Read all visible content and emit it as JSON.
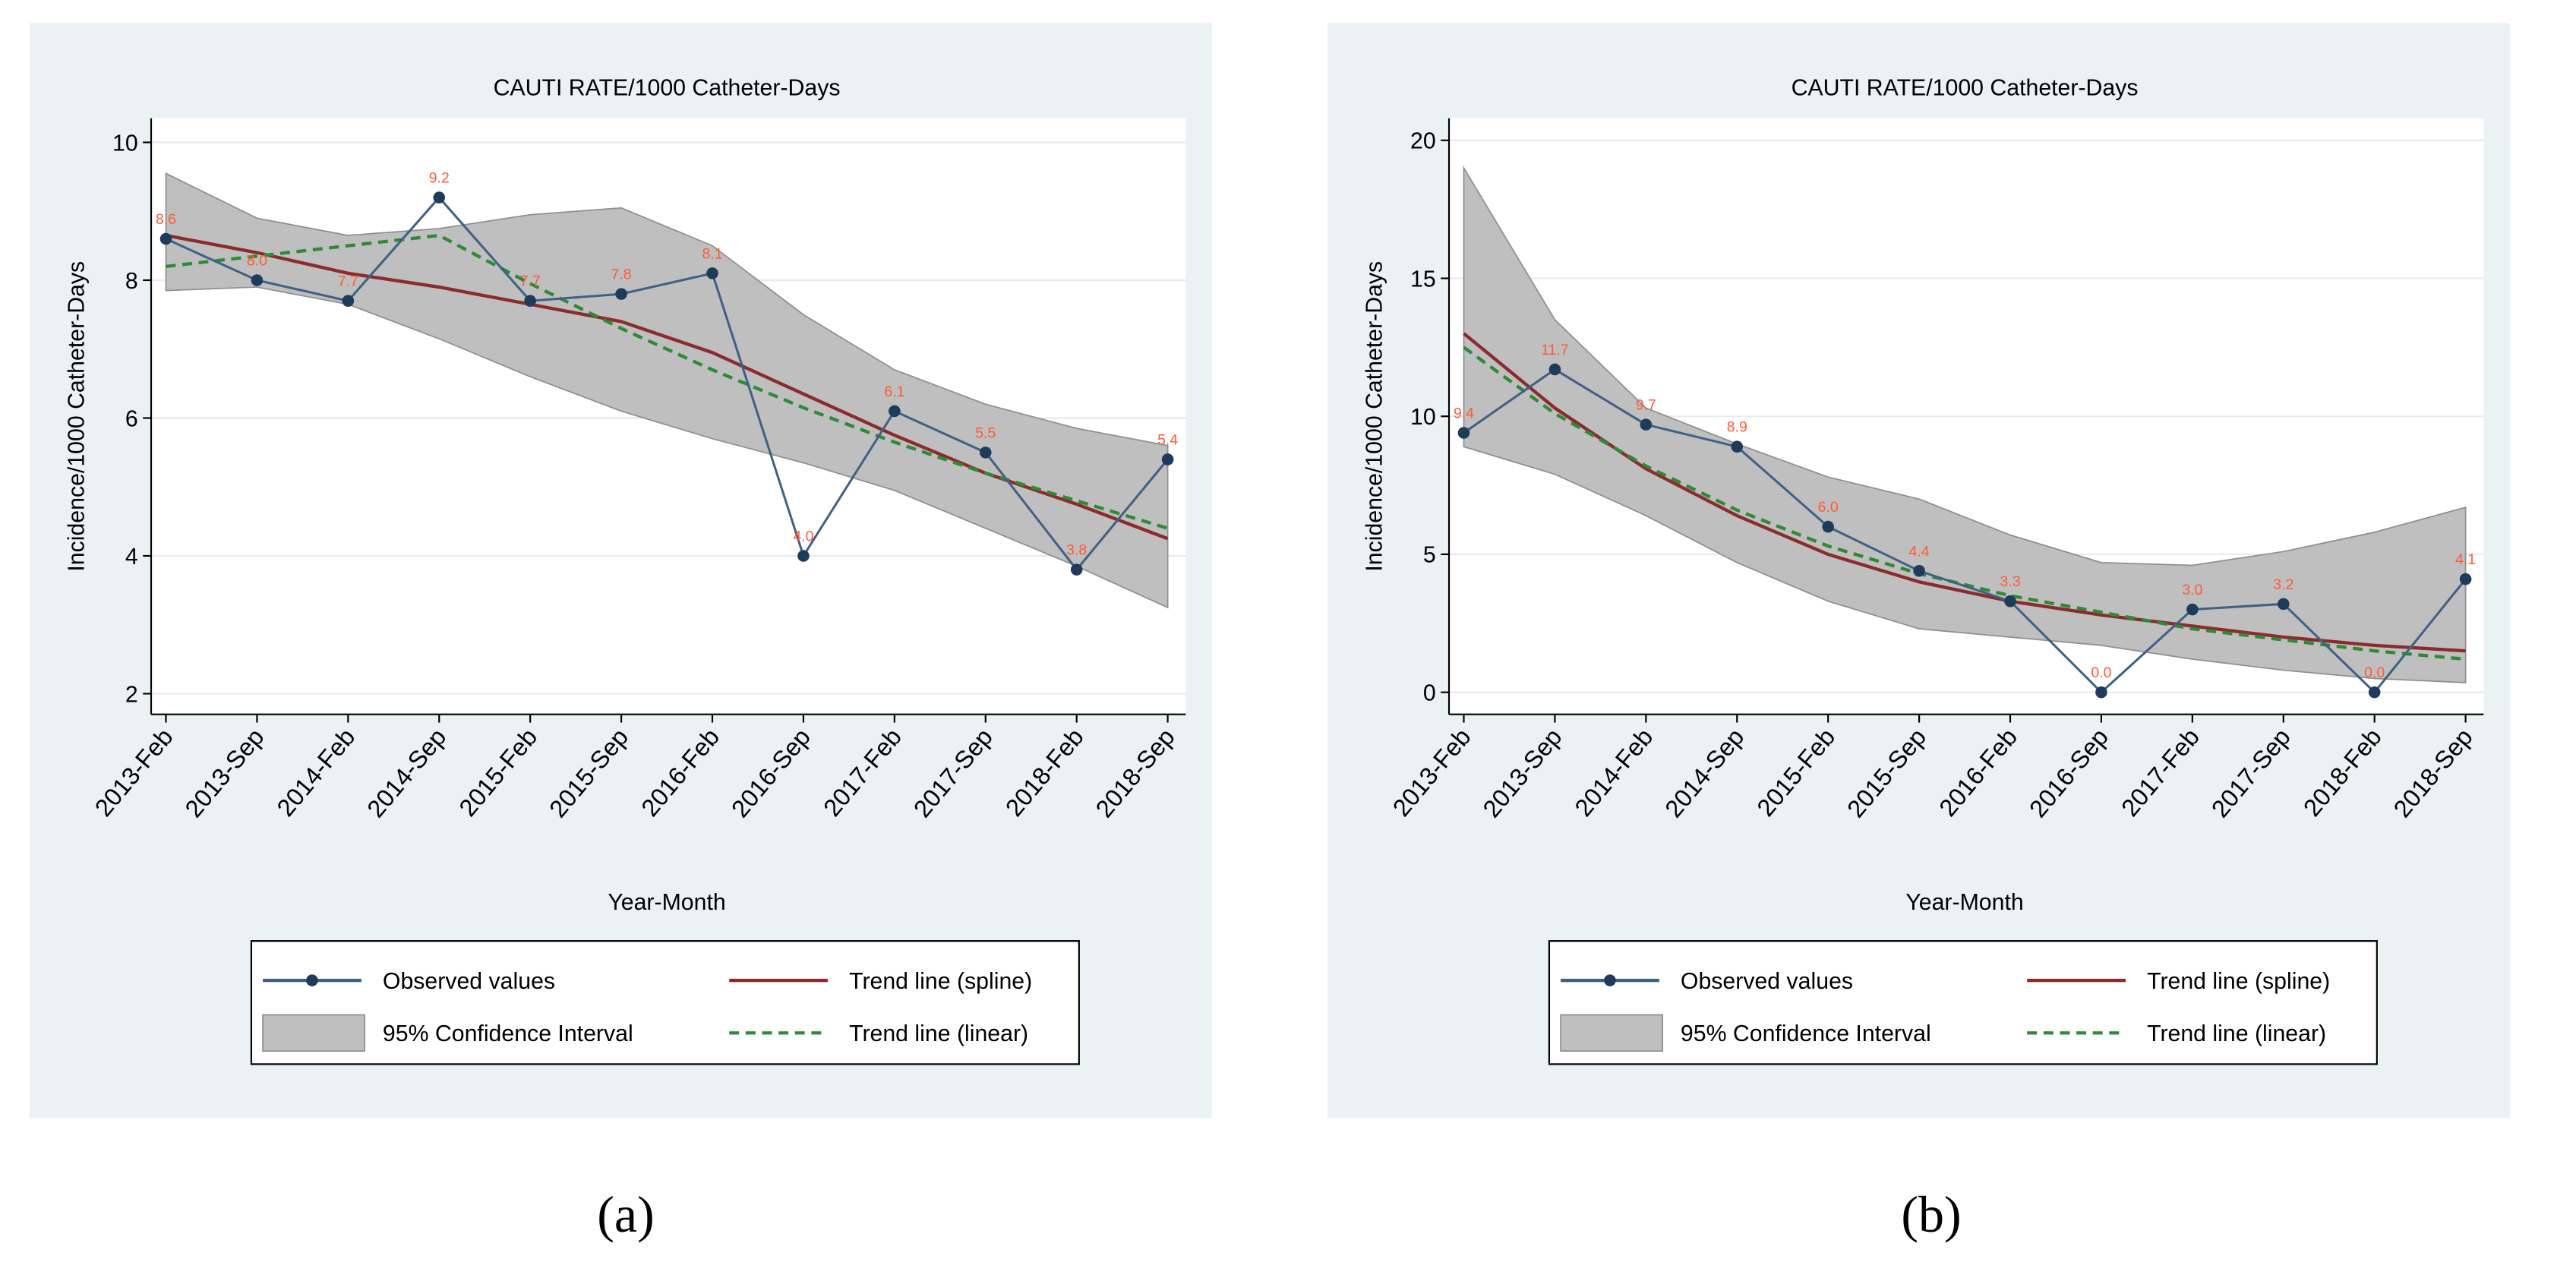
{
  "chart_data": [
    {
      "type": "line",
      "title": "CAUTI RATE/1000 Catheter-Days",
      "xlabel": "Year-Month",
      "ylabel": "Incidence/1000 Catheter-Days",
      "caption": "(a)",
      "categories": [
        "2013-Feb",
        "2013-Sep",
        "2014-Feb",
        "2014-Sep",
        "2015-Feb",
        "2015-Sep",
        "2016-Feb",
        "2016-Sep",
        "2017-Feb",
        "2017-Sep",
        "2018-Feb",
        "2018-Sep"
      ],
      "ylim": [
        1.7,
        10.35
      ],
      "yticks": [
        2,
        4,
        6,
        8,
        10
      ],
      "grid": true,
      "series": [
        {
          "name": "Observed values",
          "color": "#3f6185",
          "values": [
            8.6,
            8.0,
            7.7,
            9.2,
            7.7,
            7.8,
            8.1,
            4.0,
            6.1,
            5.5,
            3.8,
            5.4
          ],
          "value_labels": [
            "8.6",
            "8.0",
            "7.7",
            "9.2",
            "7.7",
            "7.8",
            "8.1",
            "4.0",
            "6.1",
            "5.5",
            "3.8",
            "5.4"
          ]
        },
        {
          "name": "95% Confidence Interval",
          "color": "#bfbfbf",
          "upper": [
            9.55,
            8.9,
            8.65,
            8.75,
            8.95,
            9.05,
            8.5,
            7.5,
            6.7,
            6.2,
            5.85,
            5.6
          ],
          "lower": [
            7.85,
            7.9,
            7.65,
            7.15,
            6.6,
            6.1,
            5.7,
            5.35,
            4.95,
            4.4,
            3.85,
            3.25
          ]
        },
        {
          "name": "Trend line (spline)",
          "color": "#8b2b2e",
          "values": [
            8.65,
            8.4,
            8.1,
            7.9,
            7.65,
            7.4,
            6.95,
            6.35,
            5.75,
            5.2,
            4.75,
            4.25
          ]
        },
        {
          "name": "Trend line (linear)",
          "color": "#2f8a35",
          "dashed": true,
          "values": [
            8.2,
            8.35,
            8.5,
            8.65,
            7.95,
            7.3,
            6.7,
            6.15,
            5.65,
            5.2,
            4.8,
            4.4
          ]
        }
      ]
    },
    {
      "type": "line",
      "title": "CAUTI RATE/1000 Catheter-Days",
      "xlabel": "Year-Month",
      "ylabel": "Incidence/1000 Catheter-Days",
      "caption": "(b)",
      "categories": [
        "2013-Feb",
        "2013-Sep",
        "2014-Feb",
        "2014-Sep",
        "2015-Feb",
        "2015-Sep",
        "2016-Feb",
        "2016-Sep",
        "2017-Feb",
        "2017-Sep",
        "2018-Feb",
        "2018-Sep"
      ],
      "ylim": [
        -0.8,
        20.8
      ],
      "yticks": [
        0,
        5,
        10,
        15,
        20
      ],
      "grid": true,
      "series": [
        {
          "name": "Observed values",
          "color": "#3f6185",
          "values": [
            9.4,
            11.7,
            9.7,
            8.9,
            6.0,
            4.4,
            3.3,
            0.0,
            3.0,
            3.2,
            0.0,
            4.1
          ],
          "value_labels": [
            "9.4",
            "11.7",
            "9.7",
            "8.9",
            "6.0",
            "4.4",
            "3.3",
            "0.0",
            "3.0",
            "3.2",
            "0.0",
            "4.1"
          ]
        },
        {
          "name": "95% Confidence Interval",
          "color": "#bfbfbf",
          "upper": [
            19,
            13.5,
            10.3,
            9.0,
            7.8,
            7.0,
            5.7,
            4.7,
            4.6,
            5.1,
            5.8,
            6.7
          ],
          "lower": [
            8.9,
            7.9,
            6.4,
            4.7,
            3.3,
            2.3,
            2.0,
            1.7,
            1.2,
            0.8,
            0.5,
            0.35
          ]
        },
        {
          "name": "Trend line (spline)",
          "color": "#8b2b2e",
          "values": [
            13.0,
            10.3,
            8.1,
            6.4,
            5.0,
            4.0,
            3.3,
            2.8,
            2.4,
            2.0,
            1.7,
            1.5
          ]
        },
        {
          "name": "Trend line (linear)",
          "color": "#2f8a35",
          "dashed": true,
          "values": [
            12.5,
            10.1,
            8.2,
            6.6,
            5.3,
            4.3,
            3.5,
            2.9,
            2.3,
            1.9,
            1.5,
            1.2
          ]
        }
      ]
    }
  ]
}
